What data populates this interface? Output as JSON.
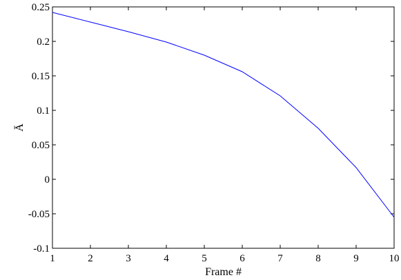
{
  "chart_data": {
    "type": "line",
    "title": "",
    "xlabel": "Frame #",
    "ylabel": "Ā",
    "xlim": [
      1,
      10
    ],
    "ylim": [
      -0.1,
      0.25
    ],
    "grid": false,
    "legend": "none",
    "x_ticks": [
      1,
      2,
      3,
      4,
      5,
      6,
      7,
      8,
      9,
      10
    ],
    "x_tick_labels": [
      "1",
      "2",
      "3",
      "4",
      "5",
      "6",
      "7",
      "8",
      "9",
      "10"
    ],
    "y_ticks": [
      -0.1,
      -0.05,
      0,
      0.05,
      0.1,
      0.15,
      0.2,
      0.25
    ],
    "y_tick_labels": [
      "-0.1",
      "-0.05",
      "0",
      "0.05",
      "0.1",
      "0.15",
      "0.2",
      "0.25"
    ],
    "x": [
      1,
      2,
      3,
      4,
      5,
      6,
      7,
      8,
      9,
      10
    ],
    "series": [
      {
        "color": "#0000ff",
        "values": [
          0.242,
          0.228,
          0.214,
          0.199,
          0.18,
          0.156,
          0.121,
          0.074,
          0.017,
          -0.055
        ]
      }
    ]
  }
}
